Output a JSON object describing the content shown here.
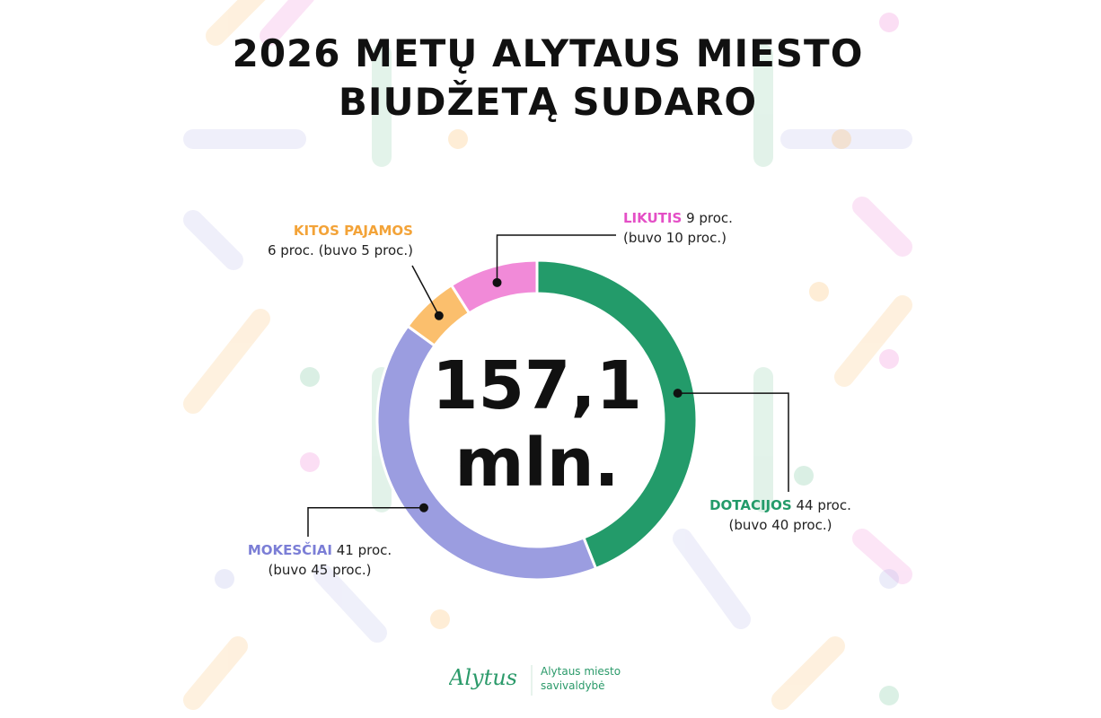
{
  "title": {
    "line1": "2026 METŲ ALYTAUS MIESTO",
    "line2": "BIUDŽETĄ SUDARO"
  },
  "center": {
    "value": "157,1",
    "unit": "mln."
  },
  "labels": {
    "kitos": {
      "category": "KITOS PAJAMOS",
      "detail": "6 proc. (buvo 5 proc.)"
    },
    "likutis": {
      "category": "LIKUTIS",
      "percent": " 9 proc.",
      "previous": "(buvo 10 proc.)"
    },
    "dotacijos": {
      "category": "DOTACIJOS",
      "percent": " 44 proc.",
      "previous": "(buvo 40 proc.)"
    },
    "mokesciai": {
      "category": "MOKESČIAI",
      "percent": " 41 proc.",
      "previous": "(buvo 45 proc.)"
    }
  },
  "logo": {
    "wordmark": "Alytus",
    "line1": "Alytaus miesto",
    "line2": "savivaldybė"
  },
  "colors": {
    "dotacijos": "#239b6a",
    "mokesciai": "#9b9de0",
    "kitos": "#fbbf6d",
    "likutis": "#f18ad8",
    "kitos_text": "#f3a338",
    "likutis_text": "#e44fc6",
    "dotacijos_text": "#239b6a",
    "mokesciai_text": "#7b7ed6"
  },
  "chart_data": {
    "type": "pie",
    "donut": true,
    "center_label": "157,1 mln.",
    "series": [
      {
        "name": "DOTACIJOS",
        "value": 44,
        "previous": 40
      },
      {
        "name": "MOKESČIAI",
        "value": 41,
        "previous": 45
      },
      {
        "name": "KITOS PAJAMOS",
        "value": 6,
        "previous": 5
      },
      {
        "name": "LIKUTIS",
        "value": 9,
        "previous": 10
      }
    ],
    "unit": "proc."
  }
}
